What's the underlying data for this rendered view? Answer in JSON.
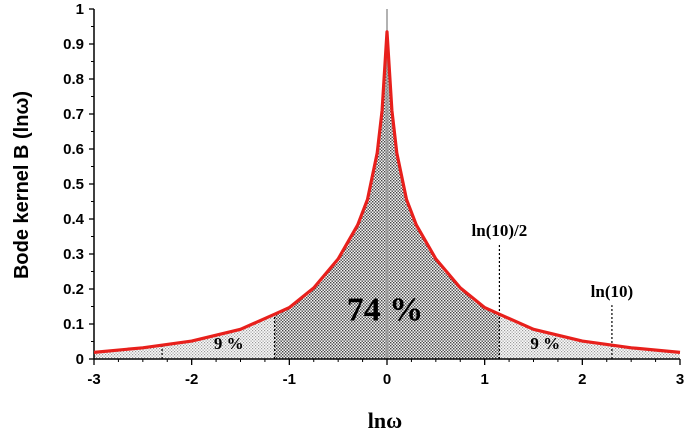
{
  "chart_data": {
    "type": "area",
    "xlabel": "lnω",
    "ylabel": "Bode kernel B (lnω)",
    "xlim": [
      -3,
      3
    ],
    "ylim": [
      0,
      1
    ],
    "x_ticks": [
      "-3",
      "-2",
      "-1",
      "0",
      "1",
      "2",
      "3"
    ],
    "y_ticks": [
      "0",
      "0.1",
      "0.2",
      "0.3",
      "0.4",
      "0.5",
      "0.6",
      "0.7",
      "0.8",
      "0.9",
      "1"
    ],
    "series": [
      {
        "x": [
          -3.0,
          -2.5,
          -2.0,
          -1.5,
          -1.15,
          -1.0,
          -0.75,
          -0.5,
          -0.3,
          -0.2,
          -0.1,
          -0.05,
          0.0,
          0.05,
          0.1,
          0.2,
          0.3,
          0.5,
          0.75,
          1.0,
          1.15,
          1.5,
          2.0,
          2.5,
          3.0
        ],
        "values": [
          0.019,
          0.032,
          0.051,
          0.085,
          0.128,
          0.147,
          0.203,
          0.286,
          0.383,
          0.456,
          0.589,
          0.71,
          0.935,
          0.71,
          0.589,
          0.456,
          0.383,
          0.286,
          0.203,
          0.147,
          0.128,
          0.085,
          0.051,
          0.032,
          0.019
        ]
      }
    ],
    "markers": [
      {
        "x": -2.303,
        "label": ""
      },
      {
        "x": -1.151,
        "label": ""
      },
      {
        "x": 1.151,
        "label": "ln(10)/2"
      },
      {
        "x": 2.303,
        "label": "ln(10)"
      }
    ],
    "region_labels": [
      {
        "text": "74 %",
        "x": -0.02,
        "y": 0.11
      },
      {
        "text": "9 %",
        "x": -1.62,
        "y": 0.028
      },
      {
        "text": "9 %",
        "x": 1.62,
        "y": 0.028
      }
    ],
    "colors": {
      "curve": "#e8201c",
      "shade": "#8c8c8c",
      "vline": "#999999"
    }
  }
}
